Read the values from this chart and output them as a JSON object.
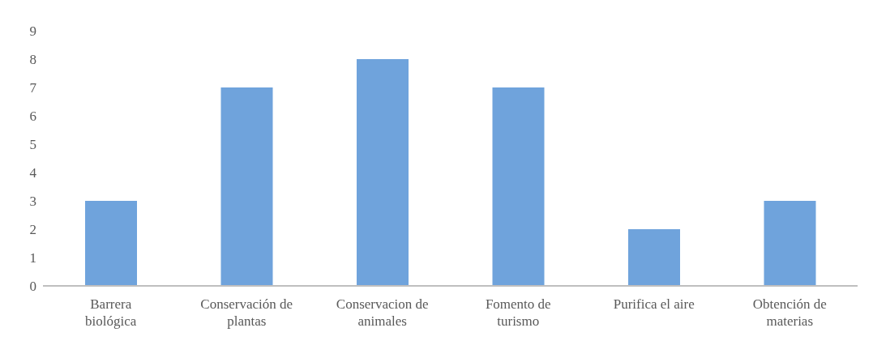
{
  "chart_data": {
    "type": "bar",
    "categories": [
      "Barrera biológica",
      "Conservación de plantas",
      "Conservacion de animales",
      "Fomento de turismo",
      "Purifica el aire",
      "Obtención de materias"
    ],
    "values": [
      3,
      7,
      8,
      7,
      2,
      3
    ],
    "color": "#6fa3dc",
    "ylim": [
      0,
      9
    ],
    "yticks": [
      0,
      1,
      2,
      3,
      4,
      5,
      6,
      7,
      8,
      9
    ],
    "grid": false
  }
}
